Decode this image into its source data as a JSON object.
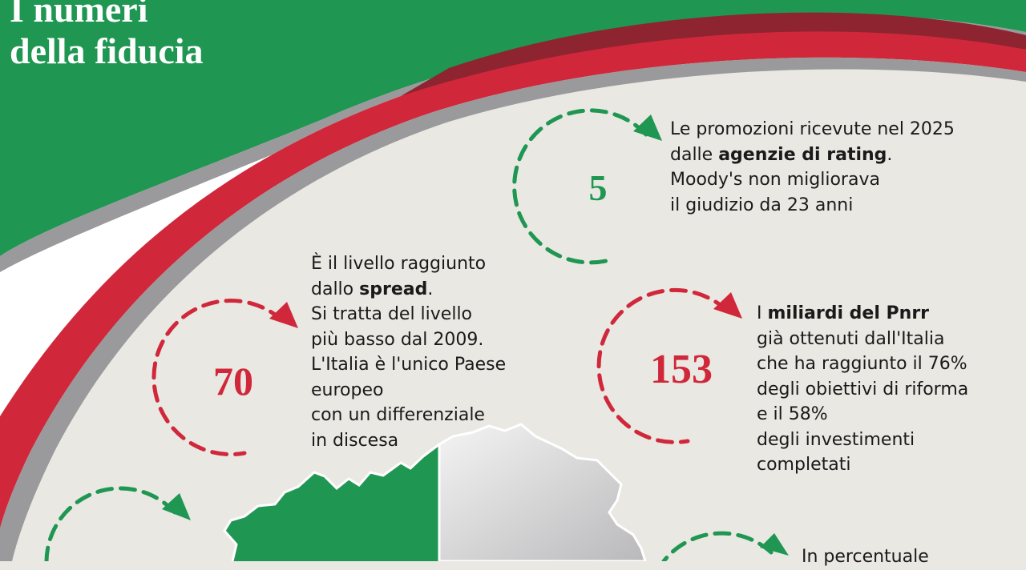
{
  "colors": {
    "green": "#1f9651",
    "red": "#d0283a",
    "dark_red": "#8e2430",
    "grey": "#9a9a9c",
    "white": "#ffffff",
    "bg": "#e9e8e3"
  },
  "title": {
    "line1": "I numeri",
    "line2": "della fiducia"
  },
  "facts": [
    {
      "number": "5",
      "color": "green",
      "lines": [
        {
          "pre": "Le promozioni ricevute nel 2025",
          "bold": "",
          "post": ""
        },
        {
          "pre": "dalle ",
          "bold": "agenzie di rating",
          "post": "."
        },
        {
          "pre": "Moody's non migliorava",
          "bold": "",
          "post": ""
        },
        {
          "pre": "il giudizio da 23 anni",
          "bold": "",
          "post": ""
        }
      ]
    },
    {
      "number": "70",
      "color": "red",
      "lines": [
        {
          "pre": "È il livello raggiunto",
          "bold": "",
          "post": ""
        },
        {
          "pre": "dallo ",
          "bold": "spread",
          "post": "."
        },
        {
          "pre": "Si tratta del livello",
          "bold": "",
          "post": ""
        },
        {
          "pre": "più basso dal 2009.",
          "bold": "",
          "post": ""
        },
        {
          "pre": "L'Italia è l'unico Paese",
          "bold": "",
          "post": ""
        },
        {
          "pre": "europeo",
          "bold": "",
          "post": ""
        },
        {
          "pre": "con un differenziale",
          "bold": "",
          "post": ""
        },
        {
          "pre": "in discesa",
          "bold": "",
          "post": ""
        }
      ]
    },
    {
      "number": "153",
      "color": "red",
      "lines": [
        {
          "pre": "I ",
          "bold": "miliardi del Pnrr",
          "post": ""
        },
        {
          "pre": "già ottenuti dall'Italia",
          "bold": "",
          "post": ""
        },
        {
          "pre": "che ha raggiunto il 76%",
          "bold": "",
          "post": ""
        },
        {
          "pre": "degli obiettivi di riforma",
          "bold": "",
          "post": ""
        },
        {
          "pre": "e il 58%",
          "bold": "",
          "post": ""
        },
        {
          "pre": "degli investimenti",
          "bold": "",
          "post": ""
        },
        {
          "pre": "completati",
          "bold": "",
          "post": ""
        }
      ]
    },
    {
      "number": "",
      "color": "green",
      "lines": [
        {
          "pre": "In percentuale",
          "bold": "",
          "post": ""
        }
      ]
    }
  ]
}
